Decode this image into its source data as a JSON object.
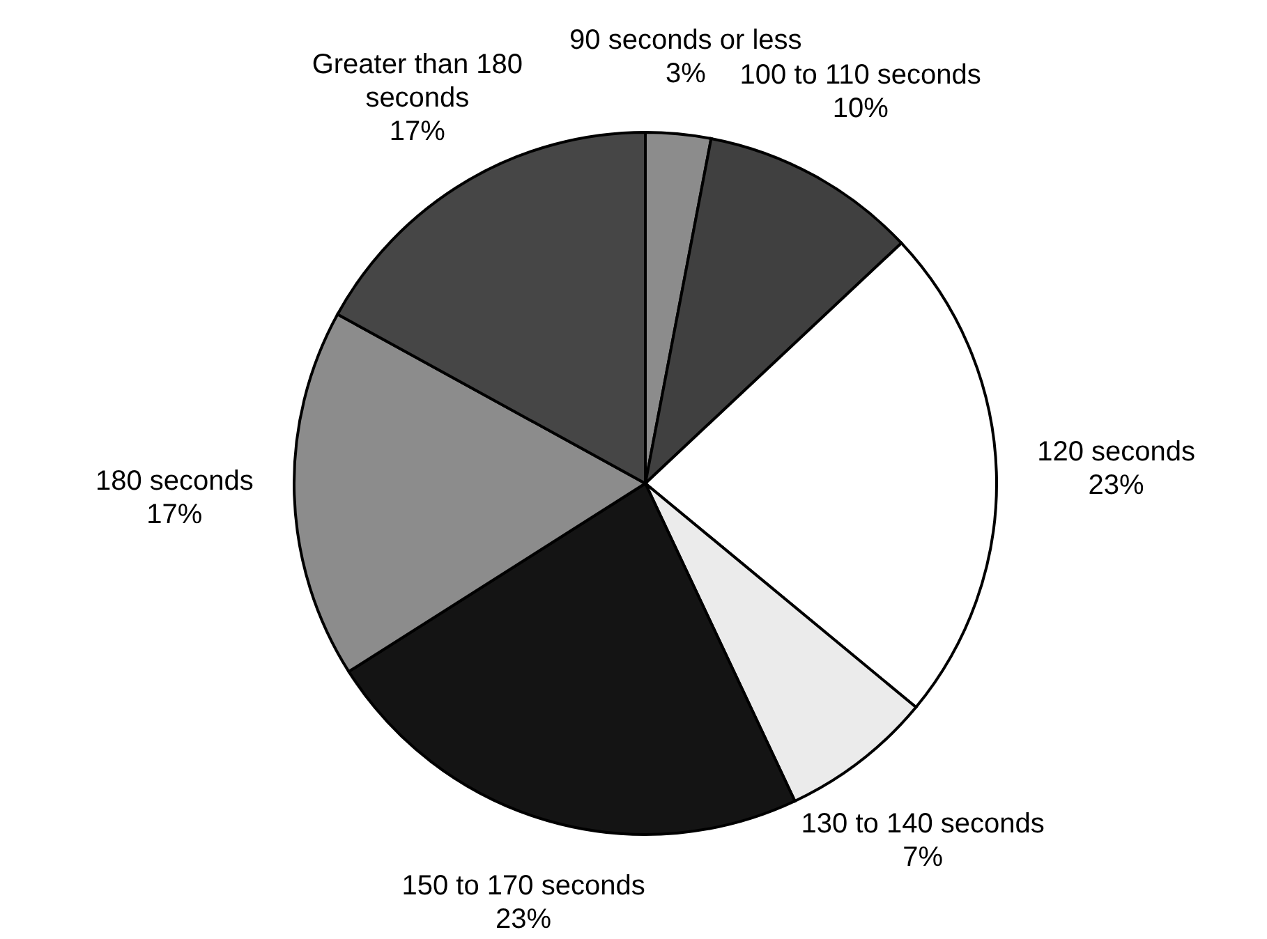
{
  "chart_data": {
    "type": "pie",
    "categories": [
      "90 seconds or less",
      "100 to 110 seconds",
      "120 seconds",
      "130 to 140 seconds",
      "150 to 170 seconds",
      "180 seconds",
      "Greater than 180 seconds"
    ],
    "values": [
      3,
      10,
      23,
      7,
      23,
      17,
      17
    ],
    "value_labels": [
      "3%",
      "10%",
      "23%",
      "7%",
      "23%",
      "17%",
      "17%"
    ],
    "colors": [
      "#8c8c8c",
      "#404040",
      "#ffffff",
      "#ebebeb",
      "#141414",
      "#8c8c8c",
      "#464646"
    ],
    "legend": false
  }
}
